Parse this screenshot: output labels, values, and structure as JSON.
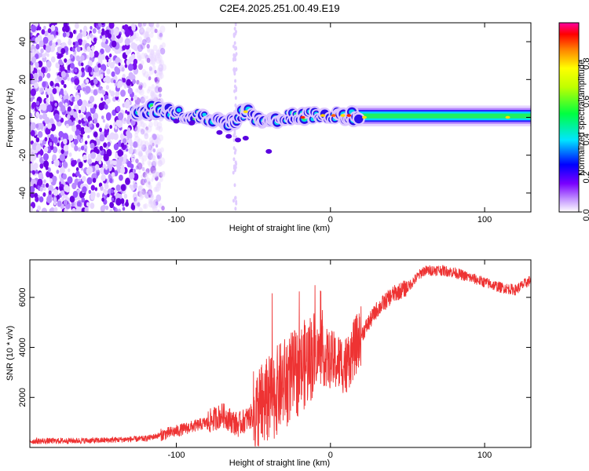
{
  "title": "C2E4.2025.251.00.49.E19",
  "chart_data": [
    {
      "type": "heatmap",
      "title": "C2E4.2025.251.00.49.E19",
      "xlabel": "Height of straight line (km)",
      "ylabel": "Frequency (Hz)",
      "xlim": [
        -195,
        130
      ],
      "ylim": [
        -50,
        50
      ],
      "xticks": [
        -100,
        0,
        100
      ],
      "yticks": [
        -40,
        -20,
        0,
        20,
        40
      ],
      "colorbar": {
        "label": "Normalized spectral amplitude",
        "range": [
          0,
          1
        ],
        "ticks": [
          0.0,
          0.2,
          0.4,
          0.6,
          0.8
        ],
        "tick_labels": [
          "0.0",
          "0.2",
          "0.4",
          "0.6",
          "0.8"
        ]
      },
      "features": {
        "noise_region_x": [
          -195,
          -108
        ],
        "band_center_points": [
          {
            "x": -128,
            "y": 3
          },
          {
            "x": -110,
            "y": 4
          },
          {
            "x": -95,
            "y": 1
          },
          {
            "x": -80,
            "y": 0
          },
          {
            "x": -65,
            "y": -3
          },
          {
            "x": -55,
            "y": 3
          },
          {
            "x": -45,
            "y": -2
          },
          {
            "x": -30,
            "y": 0
          },
          {
            "x": -10,
            "y": 1
          },
          {
            "x": 10,
            "y": 1
          },
          {
            "x": 30,
            "y": 0
          },
          {
            "x": 60,
            "y": 0
          },
          {
            "x": 90,
            "y": 0
          },
          {
            "x": 130,
            "y": 0
          }
        ]
      }
    },
    {
      "type": "line",
      "xlabel": "Height of straight line (km)",
      "ylabel": "SNR (10 * v/v)",
      "xlim": [
        -195,
        130
      ],
      "ylim": [
        0,
        7500
      ],
      "xticks": [
        -100,
        0,
        100
      ],
      "yticks": [
        2000,
        4000,
        6000
      ],
      "color": "#ee3333",
      "series": [
        {
          "values": [
            {
              "x": -195,
              "y": 250
            },
            {
              "x": -150,
              "y": 280
            },
            {
              "x": -120,
              "y": 350
            },
            {
              "x": -100,
              "y": 650
            },
            {
              "x": -80,
              "y": 1000
            },
            {
              "x": -70,
              "y": 1300
            },
            {
              "x": -60,
              "y": 900
            },
            {
              "x": -50,
              "y": 1300
            },
            {
              "x": -40,
              "y": 1900
            },
            {
              "x": -30,
              "y": 2600
            },
            {
              "x": -20,
              "y": 3100
            },
            {
              "x": -10,
              "y": 3800
            },
            {
              "x": 0,
              "y": 3500
            },
            {
              "x": 10,
              "y": 3300
            },
            {
              "x": 20,
              "y": 4500
            },
            {
              "x": 30,
              "y": 5500
            },
            {
              "x": 40,
              "y": 6100
            },
            {
              "x": 50,
              "y": 6400
            },
            {
              "x": 60,
              "y": 7050
            },
            {
              "x": 70,
              "y": 7100
            },
            {
              "x": 80,
              "y": 7000
            },
            {
              "x": 90,
              "y": 6800
            },
            {
              "x": 100,
              "y": 6600
            },
            {
              "x": 110,
              "y": 6400
            },
            {
              "x": 120,
              "y": 6300
            },
            {
              "x": 130,
              "y": 6700
            }
          ]
        }
      ]
    }
  ]
}
